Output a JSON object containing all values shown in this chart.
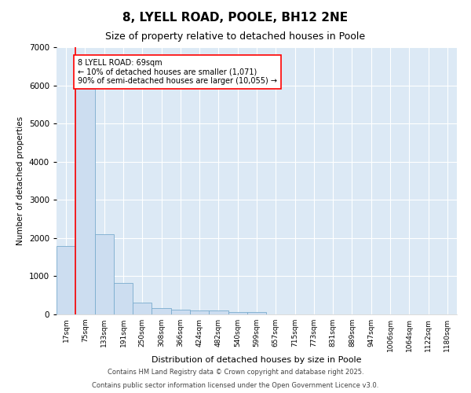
{
  "title1": "8, LYELL ROAD, POOLE, BH12 2NE",
  "title2": "Size of property relative to detached houses in Poole",
  "xlabel": "Distribution of detached houses by size in Poole",
  "ylabel": "Number of detached properties",
  "categories": [
    "17sqm",
    "75sqm",
    "133sqm",
    "191sqm",
    "250sqm",
    "308sqm",
    "366sqm",
    "424sqm",
    "482sqm",
    "540sqm",
    "599sqm",
    "657sqm",
    "715sqm",
    "773sqm",
    "831sqm",
    "889sqm",
    "947sqm",
    "1006sqm",
    "1064sqm",
    "1122sqm",
    "1180sqm"
  ],
  "values": [
    1800,
    5900,
    2100,
    820,
    300,
    155,
    115,
    100,
    95,
    70,
    60,
    0,
    0,
    0,
    0,
    0,
    0,
    0,
    0,
    0,
    0
  ],
  "bar_color": "#ccddf0",
  "bar_edge_color": "#7aacce",
  "annotation_text": "8 LYELL ROAD: 69sqm\n← 10% of detached houses are smaller (1,071)\n90% of semi-detached houses are larger (10,055) →",
  "annotation_box_color": "white",
  "annotation_box_edge_color": "red",
  "ylim": [
    0,
    7000
  ],
  "yticks": [
    0,
    1000,
    2000,
    3000,
    4000,
    5000,
    6000,
    7000
  ],
  "background_color": "#dce9f5",
  "footer1": "Contains HM Land Registry data © Crown copyright and database right 2025.",
  "footer2": "Contains public sector information licensed under the Open Government Licence v3.0.",
  "title_fontsize": 11,
  "subtitle_fontsize": 9,
  "red_line_x": 0.5
}
